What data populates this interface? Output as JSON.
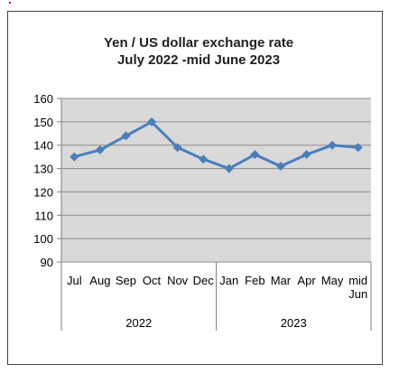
{
  "chart_data": {
    "type": "line",
    "title": "Yen / US dollar exchange rate",
    "subtitle": "July 2022  -mid June 2023",
    "categories": [
      "Jul",
      "Aug",
      "Sep",
      "Oct",
      "Nov",
      "Dec",
      "Jan",
      "Feb",
      "Mar",
      "Apr",
      "May",
      "mid Jun"
    ],
    "category_lines": [
      [
        "Jul"
      ],
      [
        "Aug"
      ],
      [
        "Sep"
      ],
      [
        "Oct"
      ],
      [
        "Nov"
      ],
      [
        "Dec"
      ],
      [
        "Jan"
      ],
      [
        "Feb"
      ],
      [
        "Mar"
      ],
      [
        "Apr"
      ],
      [
        "May"
      ],
      [
        "mid",
        "Jun"
      ]
    ],
    "groups": [
      {
        "label": "2022",
        "start": 0,
        "end": 5
      },
      {
        "label": "2023",
        "start": 6,
        "end": 11
      }
    ],
    "values": [
      135,
      138,
      144,
      150,
      139,
      134,
      130,
      136,
      131,
      136,
      140,
      139
    ],
    "ylim": [
      90,
      160
    ],
    "yticks": [
      90,
      100,
      110,
      120,
      130,
      140,
      150,
      160
    ],
    "grid": true,
    "legend": "none",
    "colors": {
      "line": "#4a7ebb",
      "plot_bg": "#d9d9d9",
      "grid": "#8c8c8c"
    }
  }
}
